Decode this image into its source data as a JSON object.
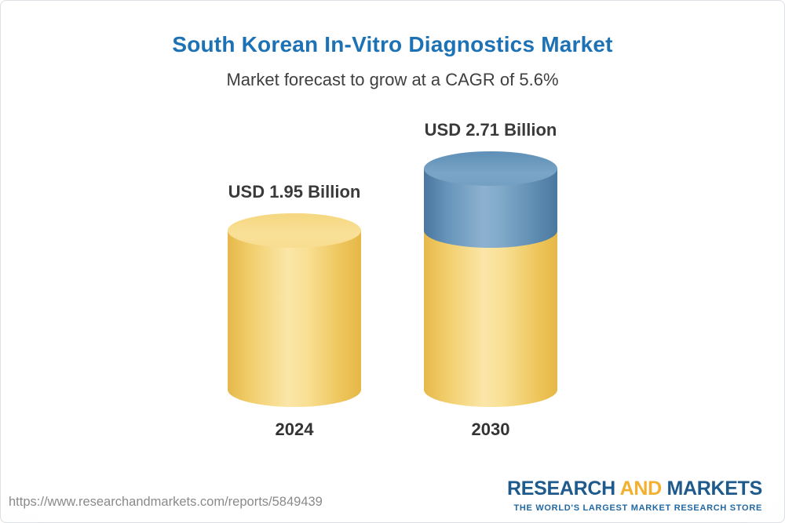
{
  "header": {
    "title": "South Korean In-Vitro Diagnostics Market",
    "subtitle": "Market forecast to grow at a CAGR of 5.6%"
  },
  "chart_data": {
    "type": "bar",
    "variant": "3d-cylinder-columns",
    "title": "South Korean In-Vitro Diagnostics Market",
    "subtitle": "Market forecast to grow at a CAGR of 5.6%",
    "categories": [
      "2024",
      "2030"
    ],
    "values": [
      1.95,
      2.71
    ],
    "value_labels": [
      "USD 1.95 Billion",
      "USD 2.71 Billion"
    ],
    "unit": "USD Billion",
    "cagr_percent": 5.6,
    "ylim": [
      0,
      2.71
    ],
    "grid": false,
    "legend": "none",
    "bar_base_color": "#F3CD68",
    "bar_growth_color": "#5D8FB8",
    "encoding_note": "2030 column shows 2024 base level in gold with incremental growth segment in blue on top"
  },
  "footer": {
    "source_url": "https://www.researchandmarkets.com/reports/5849439",
    "logo": {
      "research": "RESEARCH",
      "and": "AND",
      "markets": "MARKETS",
      "tagline": "THE WORLD'S LARGEST MARKET RESEARCH STORE"
    }
  },
  "colors": {
    "title": "#1C72B4",
    "subtitle": "#3F3F3F",
    "label_text": "#3A3A3A",
    "url_text": "#8A8A8A",
    "logo_blue": "#1E5A8C",
    "logo_gold": "#F2B02E",
    "tagline_blue": "#2268A2"
  }
}
